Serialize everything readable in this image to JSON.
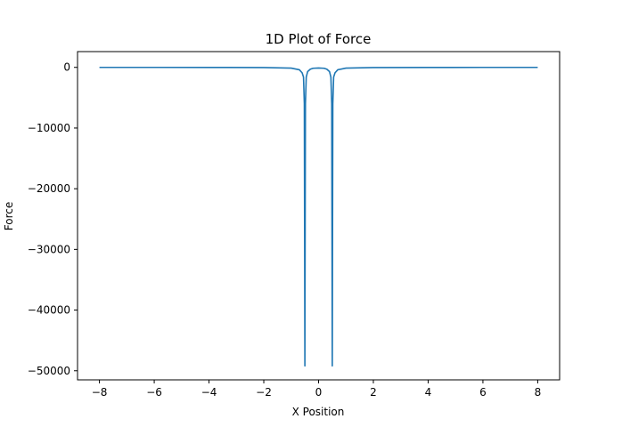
{
  "chart_data": {
    "type": "line",
    "title": "1D Plot of Force",
    "xlabel": "X Position",
    "ylabel": "Force",
    "xlim": [
      -8.8,
      8.8
    ],
    "ylim": [
      -51500,
      2600
    ],
    "xticks": [
      -8,
      -6,
      -4,
      -2,
      0,
      2,
      4,
      6,
      8
    ],
    "yticks": [
      0,
      -10000,
      -20000,
      -30000,
      -40000,
      -50000
    ],
    "xtick_labels": [
      "−8",
      "−6",
      "−4",
      "−2",
      "0",
      "2",
      "4",
      "6",
      "8"
    ],
    "ytick_labels": [
      "0",
      "−10000",
      "−20000",
      "−30000",
      "−40000",
      "−50000"
    ],
    "grid": false,
    "series": [
      {
        "color": "#1f77b4",
        "x": [
          -8.0,
          -6.0,
          -4.0,
          -2.0,
          -1.0,
          -0.7,
          -0.6,
          -0.55,
          -0.52,
          -0.5,
          -0.48,
          -0.45,
          -0.4,
          -0.3,
          -0.2,
          0.0,
          0.2,
          0.3,
          0.4,
          0.45,
          0.48,
          0.5,
          0.52,
          0.55,
          0.6,
          0.7,
          1.0,
          2.0,
          4.0,
          6.0,
          8.0
        ],
        "y": [
          -2,
          -4,
          -8,
          -30,
          -120,
          -400,
          -900,
          -1600,
          -6000,
          -49200,
          -6000,
          -1600,
          -700,
          -300,
          -150,
          -100,
          -150,
          -300,
          -700,
          -1600,
          -6000,
          -49200,
          -6000,
          -1600,
          -900,
          -400,
          -120,
          -30,
          -8,
          -4,
          -2
        ]
      }
    ]
  }
}
